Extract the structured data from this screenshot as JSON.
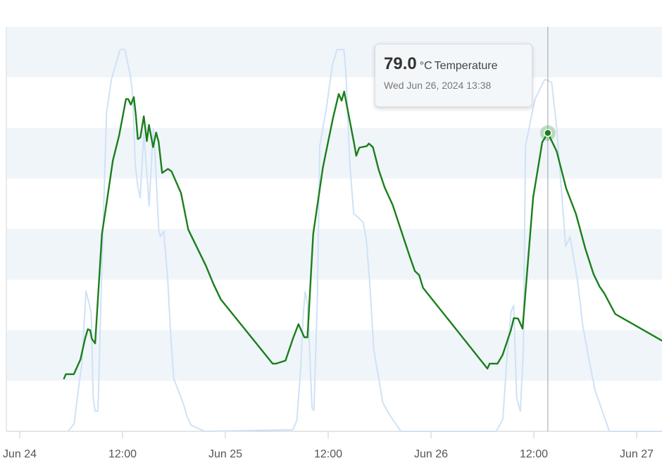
{
  "chart_data": {
    "type": "line",
    "xlim": [
      "2024-06-24 00:00",
      "2024-06-27 06:00"
    ],
    "x_ticks": [
      {
        "label": "Jun 24",
        "x": "2024-06-24 00:00"
      },
      {
        "label": "12:00",
        "x": "2024-06-24 12:00"
      },
      {
        "label": "Jun 25",
        "x": "2024-06-25 00:00"
      },
      {
        "label": "12:00",
        "x": "2024-06-25 12:00"
      },
      {
        "label": "Jun 26",
        "x": "2024-06-26 00:00"
      },
      {
        "label": "12:00",
        "x": "2024-06-26 12:00"
      },
      {
        "label": "Jun 27",
        "x": "2024-06-27 00:00"
      }
    ],
    "ylim": [
      20,
      100
    ],
    "band_color": "#f0f5fa",
    "series": [
      {
        "name": "Temperature",
        "unit": "°C",
        "color": "#1a7f1a",
        "points": [
          [
            "2024-06-24 05:08",
            30.3
          ],
          [
            "2024-06-24 05:23",
            31.3
          ],
          [
            "2024-06-24 06:19",
            31.3
          ],
          [
            "2024-06-24 07:05",
            34.2
          ],
          [
            "2024-06-24 07:38",
            38.4
          ],
          [
            "2024-06-24 07:57",
            40.2
          ],
          [
            "2024-06-24 08:13",
            40.0
          ],
          [
            "2024-06-24 08:25",
            38.3
          ],
          [
            "2024-06-24 08:48",
            37.4
          ],
          [
            "2024-06-24 09:36",
            59.1
          ],
          [
            "2024-06-24 10:04",
            64.3
          ],
          [
            "2024-06-24 10:52",
            73.5
          ],
          [
            "2024-06-24 11:36",
            78.5
          ],
          [
            "2024-06-24 12:24",
            85.7
          ],
          [
            "2024-06-24 12:40",
            85.7
          ],
          [
            "2024-06-24 12:58",
            84.6
          ],
          [
            "2024-06-24 13:19",
            86.1
          ],
          [
            "2024-06-24 13:33",
            82.5
          ],
          [
            "2024-06-24 13:47",
            77.8
          ],
          [
            "2024-06-24 14:05",
            78.1
          ],
          [
            "2024-06-24 14:29",
            82.3
          ],
          [
            "2024-06-24 14:50",
            77.4
          ],
          [
            "2024-06-24 15:05",
            80.6
          ],
          [
            "2024-06-24 15:34",
            76.2
          ],
          [
            "2024-06-24 15:55",
            79.1
          ],
          [
            "2024-06-24 16:13",
            77.2
          ],
          [
            "2024-06-24 16:37",
            71.1
          ],
          [
            "2024-06-24 17:18",
            71.9
          ],
          [
            "2024-06-24 17:43",
            71.4
          ],
          [
            "2024-06-24 18:50",
            67.1
          ],
          [
            "2024-06-24 19:40",
            59.9
          ],
          [
            "2024-06-24 21:43",
            52.8
          ],
          [
            "2024-06-24 22:37",
            49.1
          ],
          [
            "2024-06-24 23:28",
            46.1
          ],
          [
            "2024-06-25 05:31",
            33.4
          ],
          [
            "2024-06-25 05:55",
            33.4
          ],
          [
            "2024-06-25 07:01",
            34.0
          ],
          [
            "2024-06-25 07:54",
            38.4
          ],
          [
            "2024-06-25 08:32",
            41.2
          ],
          [
            "2024-06-25 09:13",
            38.6
          ],
          [
            "2024-06-25 09:35",
            38.6
          ],
          [
            "2024-06-25 10:15",
            59.0
          ],
          [
            "2024-06-25 11:23",
            72.2
          ],
          [
            "2024-06-25 12:34",
            82.0
          ],
          [
            "2024-06-25 13:14",
            86.7
          ],
          [
            "2024-06-25 13:34",
            85.4
          ],
          [
            "2024-06-25 13:52",
            87.2
          ],
          [
            "2024-06-25 15:01",
            77.0
          ],
          [
            "2024-06-25 15:17",
            74.5
          ],
          [
            "2024-06-25 15:38",
            76.1
          ],
          [
            "2024-06-25 16:30",
            76.4
          ],
          [
            "2024-06-25 16:45",
            76.9
          ],
          [
            "2024-06-25 17:13",
            76.2
          ],
          [
            "2024-06-25 17:55",
            71.6
          ],
          [
            "2024-06-25 18:36",
            68.2
          ],
          [
            "2024-06-25 19:31",
            64.8
          ],
          [
            "2024-06-25 21:32",
            54.5
          ],
          [
            "2024-06-25 22:07",
            51.7
          ],
          [
            "2024-06-25 22:37",
            50.9
          ],
          [
            "2024-06-25 23:04",
            48.4
          ],
          [
            "2024-06-26 06:35",
            32.4
          ],
          [
            "2024-06-26 06:51",
            33.4
          ],
          [
            "2024-06-26 07:46",
            33.4
          ],
          [
            "2024-06-26 08:21",
            35.1
          ],
          [
            "2024-06-26 09:19",
            40.0
          ],
          [
            "2024-06-26 09:40",
            42.4
          ],
          [
            "2024-06-26 10:10",
            42.3
          ],
          [
            "2024-06-26 10:41",
            40.3
          ],
          [
            "2024-06-26 11:55",
            66.2
          ],
          [
            "2024-06-26 12:59",
            77.2
          ],
          [
            "2024-06-26 13:38",
            79.0
          ],
          [
            "2024-06-26 14:40",
            75.4
          ],
          [
            "2024-06-26 15:47",
            68.0
          ],
          [
            "2024-06-26 16:55",
            63.0
          ],
          [
            "2024-06-26 18:01",
            56.1
          ],
          [
            "2024-06-26 18:58",
            51.1
          ],
          [
            "2024-06-26 19:41",
            48.6
          ],
          [
            "2024-06-26 20:13",
            47.3
          ],
          [
            "2024-06-26 21:30",
            43.2
          ],
          [
            "2024-06-27 06:17",
            34.7
          ]
        ]
      },
      {
        "name": "",
        "color": "#cfe2f6",
        "points": [
          [
            "2024-06-24 05:38",
            20.0
          ],
          [
            "2024-06-24 06:21",
            21.5
          ],
          [
            "2024-06-24 06:52",
            28.6
          ],
          [
            "2024-06-24 07:15",
            33.3
          ],
          [
            "2024-06-24 07:44",
            47.7
          ],
          [
            "2024-06-24 08:09",
            44.9
          ],
          [
            "2024-06-24 08:21",
            43.2
          ],
          [
            "2024-06-24 08:34",
            27.1
          ],
          [
            "2024-06-24 08:47",
            24.0
          ],
          [
            "2024-06-24 09:08",
            24.0
          ],
          [
            "2024-06-24 09:33",
            50.1
          ],
          [
            "2024-06-24 10:08",
            83.1
          ],
          [
            "2024-06-24 10:42",
            89.6
          ],
          [
            "2024-06-24 11:43",
            95.5
          ],
          [
            "2024-06-24 12:16",
            95.5
          ],
          [
            "2024-06-24 12:53",
            90.7
          ],
          [
            "2024-06-24 13:11",
            86.6
          ],
          [
            "2024-06-24 13:29",
            72.9
          ],
          [
            "2024-06-24 13:47",
            68.4
          ],
          [
            "2024-06-24 14:04",
            66.2
          ],
          [
            "2024-06-24 14:29",
            79.0
          ],
          [
            "2024-06-24 14:57",
            68.4
          ],
          [
            "2024-06-24 15:06",
            64.5
          ],
          [
            "2024-06-24 15:35",
            79.8
          ],
          [
            "2024-06-24 15:46",
            75.9
          ],
          [
            "2024-06-24 16:13",
            60.0
          ],
          [
            "2024-06-24 16:25",
            58.5
          ],
          [
            "2024-06-24 16:48",
            59.6
          ],
          [
            "2024-06-24 17:16",
            50.2
          ],
          [
            "2024-06-24 17:38",
            38.9
          ],
          [
            "2024-06-24 17:59",
            30.4
          ],
          [
            "2024-06-24 19:08",
            25.3
          ],
          [
            "2024-06-24 19:31",
            23.0
          ],
          [
            "2024-06-24 20:01",
            21.2
          ],
          [
            "2024-06-24 21:37",
            20.0
          ],
          [
            "2024-06-25 07:53",
            20.3
          ],
          [
            "2024-06-25 08:21",
            22.2
          ],
          [
            "2024-06-25 08:49",
            33.3
          ],
          [
            "2024-06-25 09:04",
            42.4
          ],
          [
            "2024-06-25 09:18",
            47.6
          ],
          [
            "2024-06-25 09:36",
            45.1
          ],
          [
            "2024-06-25 10:07",
            24.6
          ],
          [
            "2024-06-25 10:20",
            24.1
          ],
          [
            "2024-06-25 10:44",
            45.9
          ],
          [
            "2024-06-25 11:01",
            76.4
          ],
          [
            "2024-06-25 11:49",
            84.2
          ],
          [
            "2024-06-25 12:28",
            92.3
          ],
          [
            "2024-06-25 13:02",
            95.5
          ],
          [
            "2024-06-25 13:50",
            95.5
          ],
          [
            "2024-06-25 14:04",
            91.1
          ],
          [
            "2024-06-25 14:33",
            72.3
          ],
          [
            "2024-06-25 14:59",
            63.0
          ],
          [
            "2024-06-25 15:18",
            62.6
          ],
          [
            "2024-06-25 16:06",
            61.3
          ],
          [
            "2024-06-25 16:27",
            57.9
          ],
          [
            "2024-06-25 16:51",
            49.3
          ],
          [
            "2024-06-25 17:19",
            36.2
          ],
          [
            "2024-06-25 18:22",
            25.7
          ],
          [
            "2024-06-25 19:13",
            23.1
          ],
          [
            "2024-06-25 20:30",
            20.0
          ],
          [
            "2024-06-26 07:37",
            20.0
          ],
          [
            "2024-06-26 08:23",
            22.4
          ],
          [
            "2024-06-26 08:53",
            35.1
          ],
          [
            "2024-06-26 09:21",
            43.7
          ],
          [
            "2024-06-26 09:39",
            44.9
          ],
          [
            "2024-06-26 10:00",
            26.6
          ],
          [
            "2024-06-26 10:26",
            24.0
          ],
          [
            "2024-06-26 10:47",
            36.4
          ],
          [
            "2024-06-26 11:02",
            76.4
          ],
          [
            "2024-06-26 12:06",
            85.5
          ],
          [
            "2024-06-26 13:05",
            89.0
          ],
          [
            "2024-06-26 13:19",
            89.6
          ],
          [
            "2024-06-26 14:05",
            89.0
          ],
          [
            "2024-06-26 14:41",
            79.9
          ],
          [
            "2024-06-26 15:43",
            56.6
          ],
          [
            "2024-06-26 16:14",
            58.5
          ],
          [
            "2024-06-26 17:06",
            49.9
          ],
          [
            "2024-06-26 17:43",
            40.8
          ],
          [
            "2024-06-26 18:32",
            33.3
          ],
          [
            "2024-06-26 19:09",
            28.1
          ],
          [
            "2024-06-26 20:05",
            23.6
          ],
          [
            "2024-06-26 20:49",
            20.0
          ],
          [
            "2024-06-27 06:17",
            20.0
          ]
        ]
      }
    ],
    "highlight": {
      "x": "2024-06-26 13:38",
      "y": 79.0
    },
    "tooltip": {
      "value": "79.0",
      "unit": "°C",
      "series_name": "Temperature",
      "datetime": "Wed Jun 26, 2024 13:38"
    }
  }
}
